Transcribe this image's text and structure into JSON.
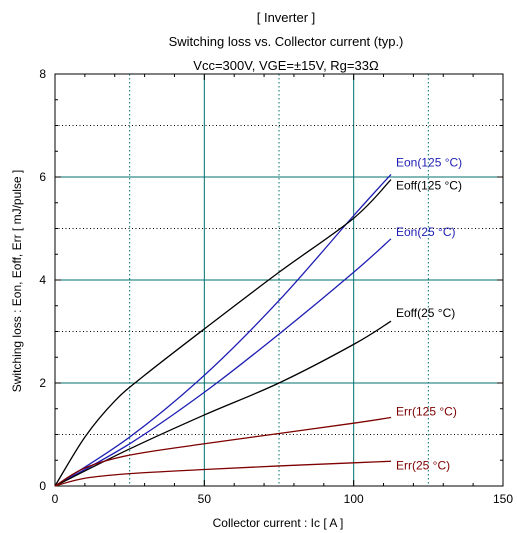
{
  "chart_data": {
    "type": "line",
    "title_lines": [
      "[ Inverter ]",
      "Switching loss  vs.  Collector current  (typ.)",
      "Vcc=300V, VGE=±15V, Rg=33Ω"
    ],
    "xlabel": "Collector current  :  Ic  [ A ]",
    "ylabel": "Switching loss  :  Eon, Eoff, Err  [ mJ/pulse ]",
    "xlim": [
      0,
      150
    ],
    "ylim": [
      0,
      8
    ],
    "x_ticks": [
      "0",
      "50",
      "100",
      "150"
    ],
    "y_ticks": [
      "0",
      "2",
      "4",
      "6",
      "8"
    ],
    "grid": true,
    "colors": {
      "blue": "#1f1fb4",
      "black": "#000000",
      "darkred": "#7f0000",
      "grid": "#007070"
    },
    "series": [
      {
        "name": "Eon(125 °C)",
        "color": "blue",
        "x": [
          0,
          25,
          50,
          75,
          100,
          112.5
        ],
        "y": [
          0,
          0.95,
          2.15,
          3.6,
          5.25,
          6.05
        ]
      },
      {
        "name": "Eoff(125 °C)",
        "color": "black",
        "x": [
          0,
          10,
          20,
          30,
          50,
          75,
          100,
          112.5
        ],
        "y": [
          0,
          0.95,
          1.65,
          2.15,
          3.05,
          4.15,
          5.2,
          5.95
        ]
      },
      {
        "name": "Eon(25 °C)",
        "color": "blue",
        "x": [
          0,
          25,
          50,
          75,
          100,
          112.5
        ],
        "y": [
          0,
          0.82,
          1.82,
          2.95,
          4.15,
          4.8
        ]
      },
      {
        "name": "Eoff(25 °C)",
        "color": "black",
        "x": [
          0,
          25,
          50,
          75,
          100,
          112.5
        ],
        "y": [
          0,
          0.72,
          1.38,
          2.0,
          2.75,
          3.2
        ]
      },
      {
        "name": "Err(125 °C)",
        "color": "darkred",
        "x": [
          0,
          10,
          25,
          50,
          75,
          100,
          112.5
        ],
        "y": [
          0,
          0.35,
          0.6,
          0.82,
          1.02,
          1.22,
          1.33
        ]
      },
      {
        "name": "Err(25 °C)",
        "color": "darkred",
        "x": [
          0,
          10,
          25,
          50,
          75,
          100,
          112.5
        ],
        "y": [
          0,
          0.15,
          0.24,
          0.32,
          0.39,
          0.45,
          0.48
        ]
      }
    ],
    "legend": "inline labels at right end of each curve"
  }
}
